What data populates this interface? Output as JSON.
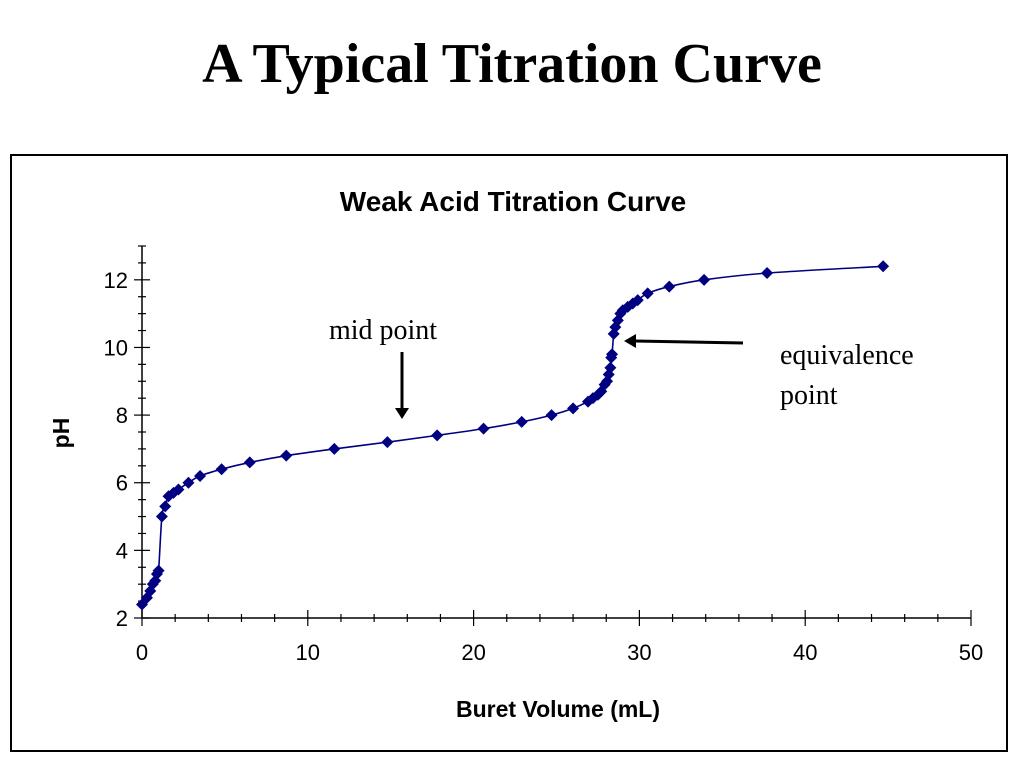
{
  "slide": {
    "title": "A Typical Titration Curve"
  },
  "chart_data": {
    "type": "scatter",
    "title": "Weak Acid Titration Curve",
    "xlabel": "Buret Volume (mL)",
    "ylabel": "pH",
    "xlim": [
      0,
      50
    ],
    "ylim": [
      2,
      13
    ],
    "xticks": [
      0,
      10,
      20,
      30,
      40,
      50
    ],
    "yticks": [
      2,
      4,
      6,
      8,
      10,
      12
    ],
    "grid": false,
    "legend": "none",
    "color": "#000080",
    "marker": "diamond",
    "line": "smooth",
    "series": [
      {
        "x": [
          0.0,
          0.3,
          0.5,
          0.65,
          0.8,
          0.9,
          1.0,
          1.2,
          1.4,
          1.6,
          1.9,
          2.2,
          2.8,
          3.5,
          4.8,
          6.5,
          8.7,
          11.6,
          14.8,
          17.8,
          20.6,
          22.9,
          24.7,
          26.0,
          26.9,
          27.2,
          27.5,
          27.7,
          27.9,
          28.05,
          28.15,
          28.25,
          28.3,
          28.35,
          28.45,
          28.55,
          28.7,
          28.85,
          29.0,
          29.3,
          29.6,
          29.9,
          30.5,
          31.8,
          33.9,
          37.7,
          44.7
        ],
        "y": [
          2.4,
          2.6,
          2.8,
          3.0,
          3.1,
          3.3,
          3.4,
          5.0,
          5.3,
          5.6,
          5.7,
          5.8,
          6.0,
          6.2,
          6.4,
          6.6,
          6.8,
          7.0,
          7.2,
          7.4,
          7.6,
          7.8,
          8.0,
          8.2,
          8.4,
          8.5,
          8.6,
          8.7,
          8.9,
          9.0,
          9.2,
          9.4,
          9.7,
          9.8,
          10.4,
          10.6,
          10.8,
          11.0,
          11.1,
          11.2,
          11.3,
          11.4,
          11.6,
          11.8,
          12.0,
          12.2,
          12.4
        ]
      }
    ],
    "annotations": [
      {
        "text": "mid point",
        "x": 15.8,
        "y": 7.9
      },
      {
        "lines": [
          "equivalence",
          "point"
        ],
        "x": 28.7,
        "y": 10.1
      }
    ]
  }
}
